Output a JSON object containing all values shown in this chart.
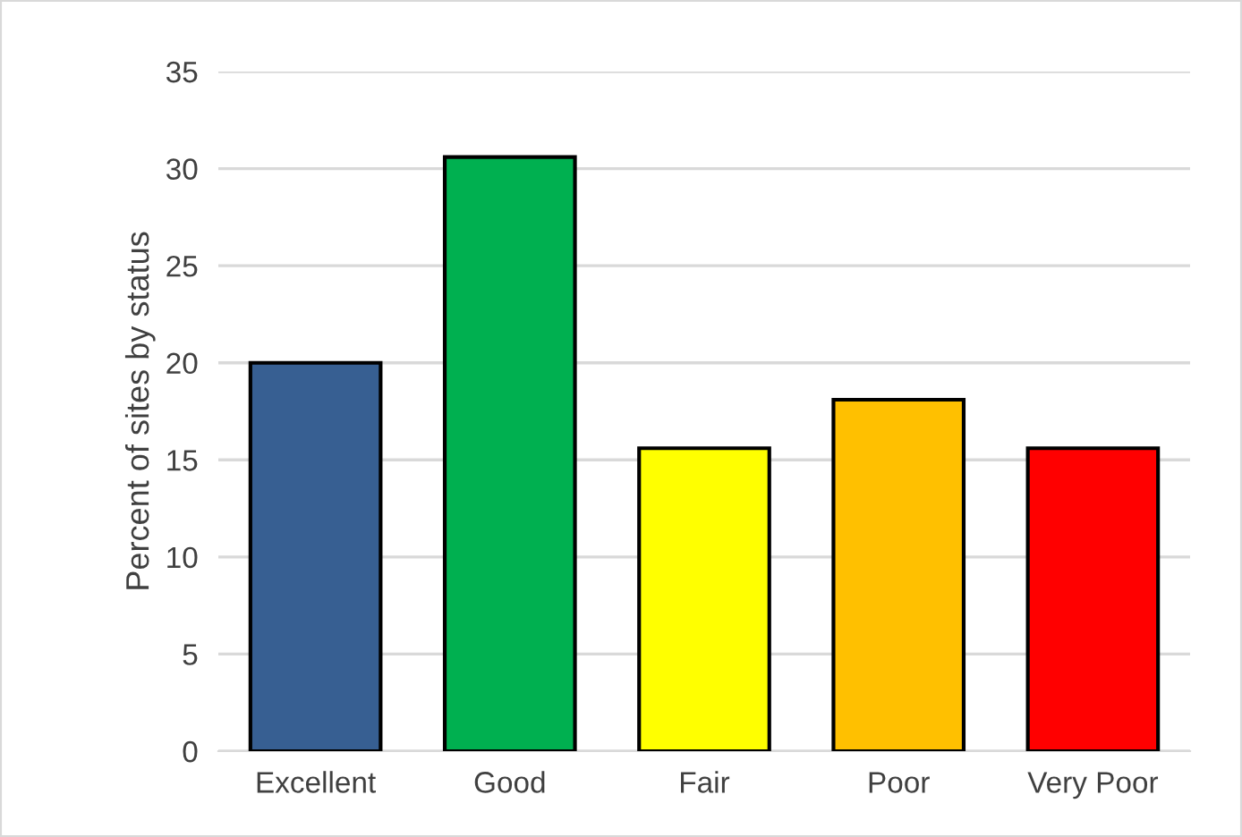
{
  "chart_data": {
    "type": "bar",
    "ylabel": "Percent of sites by status",
    "categories": [
      "Excellent",
      "Good",
      "Fair",
      "Poor",
      "Very Poor"
    ],
    "values": [
      20.0,
      30.6,
      15.6,
      18.1,
      15.6
    ],
    "colors": [
      "#375f92",
      "#00b050",
      "#ffff00",
      "#ffc000",
      "#ff0000"
    ],
    "ylim": [
      0,
      35
    ],
    "yticks": [
      0,
      5,
      10,
      15,
      20,
      25,
      30,
      35
    ],
    "grid": "y"
  }
}
